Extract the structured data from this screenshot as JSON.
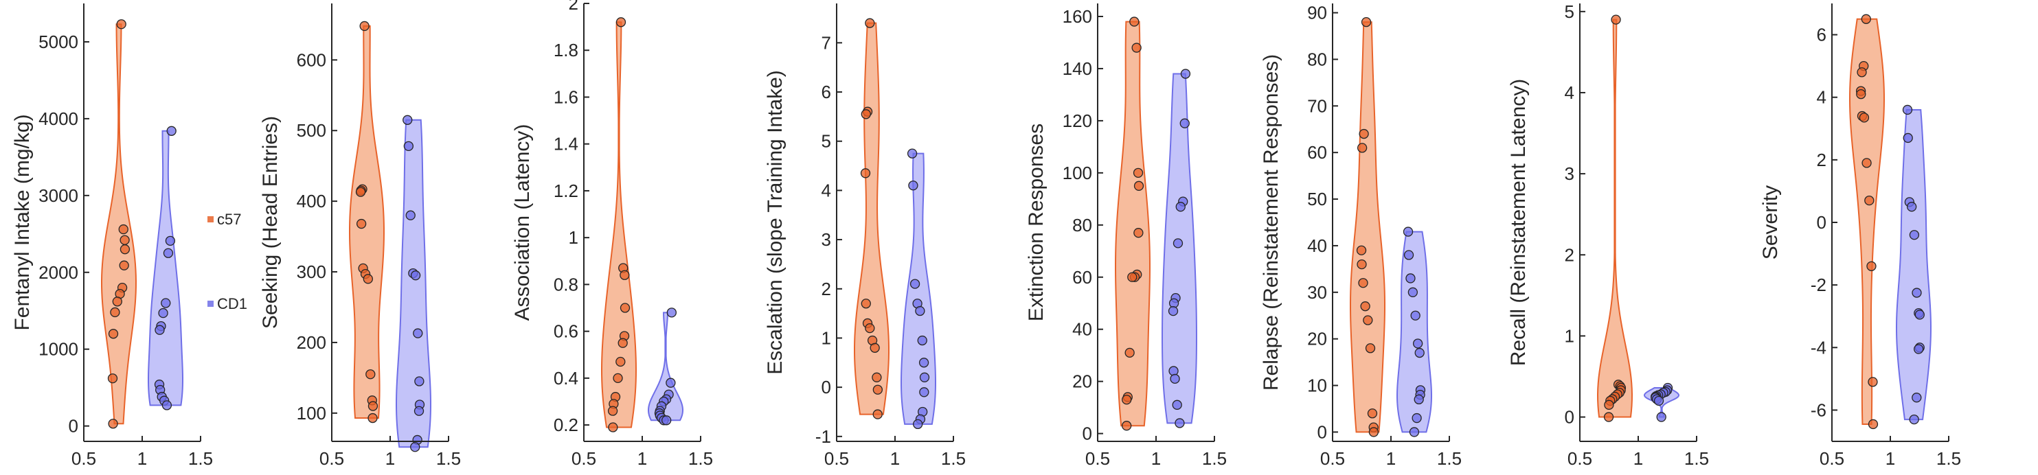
{
  "colors": {
    "c57": "#E8632A",
    "CD1": "#6F6FE8",
    "c57_fill": "#F6B08C",
    "CD1_fill": "#B9B9F8",
    "axis": "#262626"
  },
  "legend": {
    "items": [
      {
        "label": "c57",
        "series": "c57"
      },
      {
        "label": "CD1",
        "series": "CD1"
      }
    ]
  },
  "chart_data": [
    {
      "type": "violin",
      "ylabel": "Fentanyl Intake (mg/kg)",
      "xlim": [
        0.5,
        1.5
      ],
      "xticks": [
        0.5,
        1,
        1.5
      ],
      "xtick_labels": [
        "0.5",
        "1",
        "1.5"
      ],
      "ylim": [
        -200,
        5500
      ],
      "yticks": [
        0,
        1000,
        2000,
        3000,
        4000,
        5000
      ],
      "ytick_labels": [
        "0",
        "1000",
        "2000",
        "3000",
        "4000",
        "5000"
      ],
      "series": [
        {
          "name": "c57",
          "x": 0.8,
          "values": [
            5230,
            2560,
            2420,
            2300,
            2090,
            1800,
            1720,
            1620,
            1480,
            1200,
            620,
            30
          ]
        },
        {
          "name": "CD1",
          "x": 1.2,
          "values": [
            3840,
            2410,
            2250,
            1600,
            1470,
            1300,
            1250,
            540,
            470,
            380,
            330,
            270
          ]
        }
      ]
    },
    {
      "type": "violin",
      "ylabel": "Seeking (Head Entries)",
      "xlim": [
        0.5,
        1.5
      ],
      "xticks": [
        0.5,
        1,
        1.5
      ],
      "xtick_labels": [
        "0.5",
        "1",
        "1.5"
      ],
      "ylim": [
        60,
        680
      ],
      "yticks": [
        100,
        200,
        300,
        400,
        500,
        600
      ],
      "ytick_labels": [
        "100",
        "200",
        "300",
        "400",
        "500",
        "600"
      ],
      "series": [
        {
          "name": "c57",
          "x": 0.8,
          "values": [
            648,
            417,
            415,
            413,
            368,
            305,
            297,
            290,
            155,
            118,
            110,
            93
          ]
        },
        {
          "name": "CD1",
          "x": 1.2,
          "values": [
            515,
            478,
            380,
            298,
            295,
            213,
            145,
            112,
            103,
            62,
            52
          ]
        }
      ]
    },
    {
      "type": "violin",
      "ylabel": "Association (Latency)",
      "xlim": [
        0.5,
        1.5
      ],
      "xticks": [
        0.5,
        1,
        1.5
      ],
      "xtick_labels": [
        "0.5",
        "1",
        "1.5"
      ],
      "ylim": [
        0.13,
        2.0
      ],
      "yticks": [
        0.2,
        0.4,
        0.6,
        0.8,
        1,
        1.2,
        1.4,
        1.6,
        1.8,
        2
      ],
      "ytick_labels": [
        "0.2",
        "0.4",
        "0.6",
        "0.8",
        "1",
        "1.2",
        "1.4",
        "1.6",
        "1.8",
        "2"
      ],
      "series": [
        {
          "name": "c57",
          "x": 0.8,
          "values": [
            1.92,
            0.87,
            0.84,
            0.7,
            0.58,
            0.55,
            0.47,
            0.4,
            0.32,
            0.29,
            0.26,
            0.19
          ]
        },
        {
          "name": "CD1",
          "x": 1.2,
          "values": [
            0.68,
            0.38,
            0.33,
            0.31,
            0.3,
            0.28,
            0.26,
            0.25,
            0.24,
            0.23,
            0.22,
            0.22
          ]
        }
      ]
    },
    {
      "type": "violin",
      "ylabel": "Escalation (slope Training Intake)",
      "xlim": [
        0.5,
        1.5
      ],
      "xticks": [
        0.5,
        1,
        1.5
      ],
      "xtick_labels": [
        "0.5",
        "1",
        "1.5"
      ],
      "ylim": [
        -1.1,
        7.8
      ],
      "yticks": [
        -1,
        0,
        1,
        2,
        3,
        4,
        5,
        6,
        7
      ],
      "ytick_labels": [
        "-1",
        "0",
        "1",
        "2",
        "3",
        "4",
        "5",
        "6",
        "7"
      ],
      "series": [
        {
          "name": "c57",
          "x": 0.8,
          "values": [
            7.4,
            5.6,
            5.55,
            4.35,
            1.7,
            1.3,
            1.2,
            0.95,
            0.8,
            0.2,
            -0.05,
            -0.55
          ]
        },
        {
          "name": "CD1",
          "x": 1.2,
          "values": [
            4.75,
            4.1,
            2.1,
            1.7,
            1.55,
            0.95,
            0.5,
            0.2,
            -0.1,
            -0.5,
            -0.65,
            -0.75
          ]
        }
      ]
    },
    {
      "type": "violin",
      "ylabel": "Extinction Responses",
      "xlim": [
        0.5,
        1.5
      ],
      "xticks": [
        0.5,
        1,
        1.5
      ],
      "xtick_labels": [
        "0.5",
        "1",
        "1.5"
      ],
      "ylim": [
        -3,
        165
      ],
      "yticks": [
        0,
        20,
        40,
        60,
        80,
        100,
        120,
        140,
        160
      ],
      "ytick_labels": [
        "0",
        "20",
        "40",
        "60",
        "80",
        "100",
        "120",
        "140",
        "160"
      ],
      "series": [
        {
          "name": "c57",
          "x": 0.8,
          "values": [
            158,
            148,
            100,
            95,
            77,
            61,
            60,
            60,
            31,
            14,
            13,
            3
          ]
        },
        {
          "name": "CD1",
          "x": 1.2,
          "values": [
            138,
            119,
            89,
            87,
            73,
            52,
            50,
            47,
            24,
            21,
            11,
            4
          ]
        }
      ]
    },
    {
      "type": "violin",
      "ylabel": "Relapse (Reinstatement Responses)",
      "xlim": [
        0.5,
        1.5
      ],
      "xticks": [
        0.5,
        1,
        1.5
      ],
      "xtick_labels": [
        "0.5",
        "1",
        "1.5"
      ],
      "ylim": [
        -2,
        92
      ],
      "yticks": [
        0,
        10,
        20,
        30,
        40,
        50,
        60,
        70,
        80,
        90
      ],
      "ytick_labels": [
        "0",
        "10",
        "20",
        "30",
        "40",
        "50",
        "60",
        "70",
        "80",
        "90"
      ],
      "series": [
        {
          "name": "c57",
          "x": 0.8,
          "values": [
            88,
            64,
            61,
            39,
            36,
            32,
            27,
            24,
            18,
            4,
            1,
            0
          ]
        },
        {
          "name": "CD1",
          "x": 1.2,
          "values": [
            43,
            38,
            33,
            30,
            25,
            19,
            17,
            9,
            8,
            7,
            3,
            0
          ]
        }
      ]
    },
    {
      "type": "violin",
      "ylabel": "Recall (Reinstatement Latency)",
      "xlim": [
        0.5,
        1.5
      ],
      "xticks": [
        0.5,
        1,
        1.5
      ],
      "xtick_labels": [
        "0.5",
        "1",
        "1.5"
      ],
      "ylim": [
        -0.3,
        5.1
      ],
      "yticks": [
        0,
        1,
        2,
        3,
        4,
        5
      ],
      "ytick_labels": [
        "0",
        "1",
        "2",
        "3",
        "4",
        "5"
      ],
      "series": [
        {
          "name": "c57",
          "x": 0.8,
          "values": [
            4.9,
            0.4,
            0.38,
            0.36,
            0.33,
            0.3,
            0.28,
            0.25,
            0.22,
            0.2,
            0.15,
            0.0
          ]
        },
        {
          "name": "CD1",
          "x": 1.2,
          "values": [
            0.36,
            0.33,
            0.31,
            0.3,
            0.28,
            0.27,
            0.26,
            0.25,
            0.24,
            0.22,
            0.2,
            0.0
          ]
        }
      ]
    },
    {
      "type": "violin",
      "ylabel": "Severity",
      "xlim": [
        0.5,
        1.5
      ],
      "xticks": [
        0.5,
        1,
        1.5
      ],
      "xtick_labels": [
        "0.5",
        "1",
        "1.5"
      ],
      "ylim": [
        -7,
        7
      ],
      "yticks": [
        -6,
        -4,
        -2,
        0,
        2,
        4,
        6
      ],
      "ytick_labels": [
        "-6",
        "-4",
        "-2",
        "0",
        "2",
        "4",
        "6"
      ],
      "series": [
        {
          "name": "c57",
          "x": 0.8,
          "values": [
            6.5,
            5.0,
            4.8,
            4.2,
            4.1,
            3.4,
            3.35,
            1.9,
            0.7,
            -1.4,
            -5.1,
            -6.45
          ]
        },
        {
          "name": "CD1",
          "x": 1.2,
          "values": [
            3.6,
            2.7,
            0.65,
            0.5,
            -0.4,
            -2.25,
            -2.9,
            -2.95,
            -4.0,
            -4.05,
            -5.6,
            -6.3
          ]
        }
      ]
    }
  ]
}
